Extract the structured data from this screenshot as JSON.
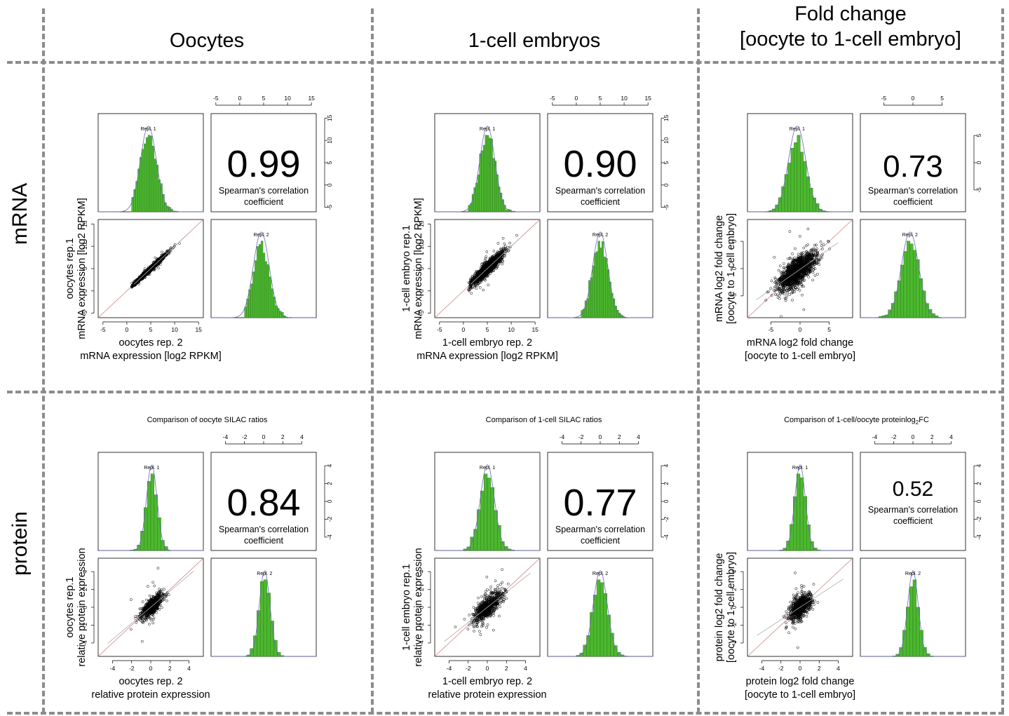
{
  "column_headers": [
    {
      "line1": "",
      "line2": "Oocytes"
    },
    {
      "line1": "",
      "line2": "1-cell embryos"
    },
    {
      "line1": "Fold change",
      "line2": "[oocyte to 1-cell embryo]"
    }
  ],
  "row_headers": [
    "mRNA",
    "protein"
  ],
  "colors": {
    "histogram": "#4cb82f",
    "grid_dash": "#8c8c8c",
    "density_curve": "#6a6ab8",
    "diag_line": "#d08080"
  },
  "chart_data": [
    {
      "type": "scatter",
      "row": "mRNA",
      "column": "Oocytes",
      "title": "",
      "correlation": "0.99",
      "corr_label_1": "Spearman's correlation",
      "corr_label_2": "coefficient",
      "hist1_label": "Repl. 1",
      "hist2_label": "Repl. 2",
      "xlabel_1": "oocytes rep. 2",
      "xlabel_2": "mRNA expression [log2 RPKM]",
      "ylabel_1": "oocytes rep.1",
      "ylabel_2": "mRNA expression [log2 RPKM]",
      "xlim": [
        -6,
        16
      ],
      "ylim": [
        -6,
        16
      ],
      "ticks": [
        -5,
        0,
        5,
        10,
        15
      ],
      "scatter_shape": {
        "x_center": 4.5,
        "x_sd": 1.8,
        "slope": 1.0,
        "noise_sd": 0.25,
        "x_min": 1.0,
        "x_max": 13
      },
      "hist_x_range": [
        1,
        13
      ],
      "hist_center": 4.5,
      "hist_sd": 1.8
    },
    {
      "type": "scatter",
      "row": "mRNA",
      "column": "1-cell embryos",
      "title": "",
      "correlation": "0.90",
      "corr_label_1": "Spearman's correlation",
      "corr_label_2": "coefficient",
      "hist1_label": "Repl. 1",
      "hist2_label": "Repl. 2",
      "xlabel_1": "1-cell embryo rep. 2",
      "xlabel_2": "mRNA expression [log2 RPKM]",
      "ylabel_1": "1-cell embryo rep.1",
      "ylabel_2": "mRNA expression [log2 RPKM]",
      "xlim": [
        -6,
        16
      ],
      "ylim": [
        -6,
        16
      ],
      "ticks": [
        -5,
        0,
        5,
        10,
        15
      ],
      "scatter_shape": {
        "x_center": 5.0,
        "x_sd": 1.7,
        "slope": 1.0,
        "noise_sd": 0.7,
        "x_min": 1.0,
        "x_max": 12
      },
      "hist_x_range": [
        1,
        12
      ],
      "hist_center": 5.0,
      "hist_sd": 1.7
    },
    {
      "type": "scatter",
      "row": "mRNA",
      "column": "Fold change",
      "title": "",
      "correlation": "0.73",
      "corr_label_1": "Spearman's correlation",
      "corr_label_2": "coefficient",
      "hist1_label": "Repl. 1",
      "hist2_label": "Repl. 2",
      "xlabel_1": "mRNA log2 fold change",
      "xlabel_2": "[oocyte to 1-cell embryo]",
      "ylabel_1": "mRNA log2 fold change",
      "ylabel_2": "[oocyte to 1-cell embryo]",
      "xlim": [
        -9,
        9
      ],
      "ylim": [
        -9,
        9
      ],
      "ticks": [
        -5,
        0,
        5
      ],
      "scatter_shape": {
        "x_center": -0.5,
        "x_sd": 1.6,
        "slope": 0.75,
        "noise_sd": 1.2,
        "x_min": -8,
        "x_max": 7
      },
      "hist_x_range": [
        -8,
        7
      ],
      "hist_center": -0.5,
      "hist_sd": 1.6
    },
    {
      "type": "scatter",
      "row": "protein",
      "column": "Oocytes",
      "title": "Comparison of oocyte SILAC ratios",
      "correlation": "0.84",
      "corr_label_1": "Spearman's correlation",
      "corr_label_2": "coefficient",
      "hist1_label": "Repl. 1",
      "hist2_label": "Repl. 2",
      "xlabel_1": "oocytes rep. 2",
      "xlabel_2": "relative protein expression",
      "ylabel_1": "oocytes rep.1",
      "ylabel_2": "relative protein expression",
      "xlim": [
        -5.5,
        5.5
      ],
      "ylim": [
        -5.5,
        5.5
      ],
      "ticks": [
        -4,
        -2,
        0,
        2,
        4
      ],
      "scatter_shape": {
        "x_center": 0.1,
        "x_sd": 0.6,
        "slope": 0.9,
        "noise_sd": 0.45,
        "x_min": -5,
        "x_max": 5
      },
      "hist_x_range": [
        -5,
        5
      ],
      "hist_center": 0.1,
      "hist_sd": 0.6
    },
    {
      "type": "scatter",
      "row": "protein",
      "column": "1-cell embryos",
      "title": "Comparison of 1-cell SILAC ratios",
      "correlation": "0.77",
      "corr_label_1": "Spearman's correlation",
      "corr_label_2": "coefficient",
      "hist1_label": "Repl. 1",
      "hist2_label": "Repl. 2",
      "xlabel_1": "1-cell embryo rep. 2",
      "xlabel_2": "relative protein expression",
      "ylabel_1": "1-cell embryo rep.1",
      "ylabel_2": "relative protein expression",
      "xlim": [
        -5.5,
        5.5
      ],
      "ylim": [
        -5.5,
        5.5
      ],
      "ticks": [
        -4,
        -2,
        0,
        2,
        4
      ],
      "scatter_shape": {
        "x_center": 0.0,
        "x_sd": 0.8,
        "slope": 0.85,
        "noise_sd": 0.6,
        "x_min": -5,
        "x_max": 5
      },
      "hist_x_range": [
        -5,
        5
      ],
      "hist_center": 0.0,
      "hist_sd": 0.8
    },
    {
      "type": "scatter",
      "row": "protein",
      "column": "Fold change",
      "title": "Comparison of 1-cell/oocyte proteinlog",
      "title_sub": "2",
      "title_tail": "FC",
      "correlation": "0.52",
      "corr_label_1": "Spearman's correlation",
      "corr_label_2": "coefficient",
      "hist1_label": "Repl. 1",
      "hist2_label": "Repl. 2",
      "xlabel_1": "protein log2 fold change",
      "xlabel_2": "[oocyte to 1-cell embryo]",
      "ylabel_1": "protein log2 fold change",
      "ylabel_2": "[oocyte to 1-cell embryo]",
      "xlim": [
        -5.5,
        5.5
      ],
      "ylim": [
        -5.5,
        5.5
      ],
      "ticks": [
        -4,
        -2,
        0,
        2,
        4
      ],
      "scatter_shape": {
        "x_center": 0.0,
        "x_sd": 0.6,
        "slope": 0.7,
        "noise_sd": 0.6,
        "x_min": -5,
        "x_max": 5
      },
      "hist_x_range": [
        -5,
        5
      ],
      "hist_center": 0.0,
      "hist_sd": 0.6
    }
  ]
}
